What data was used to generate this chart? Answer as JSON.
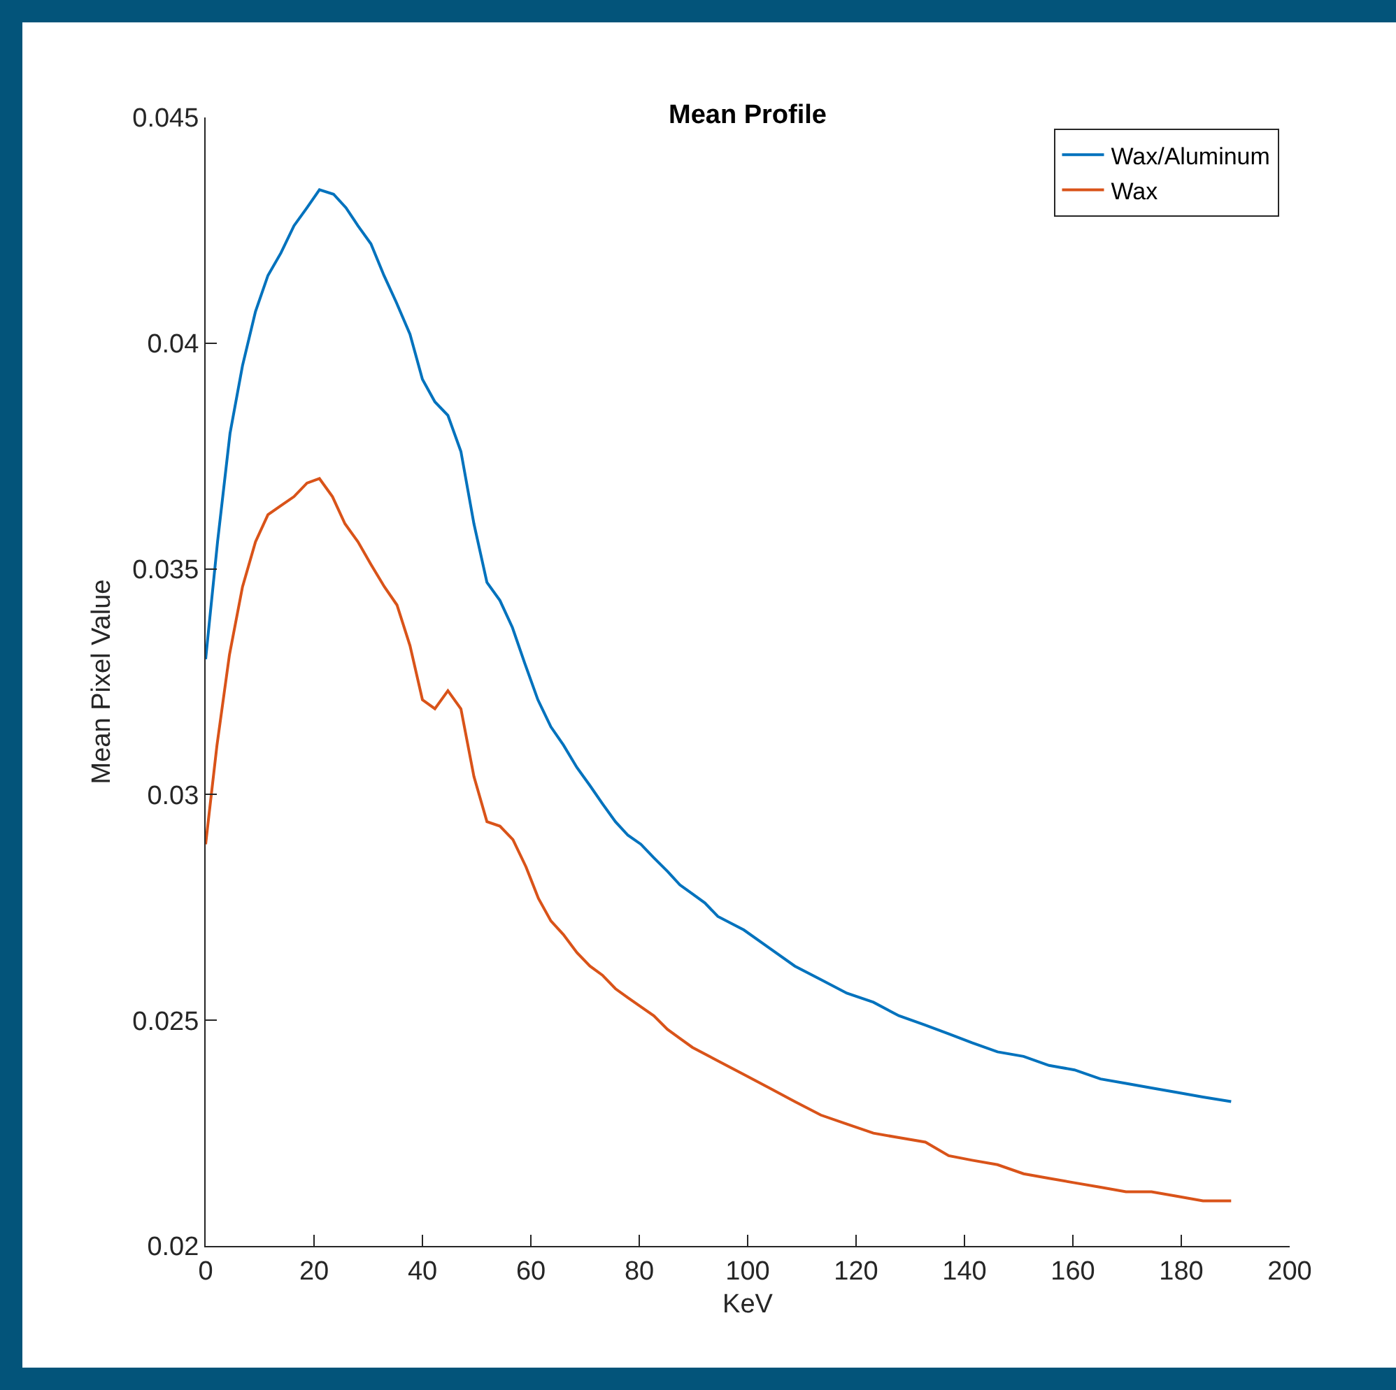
{
  "chart_data": {
    "type": "line",
    "title": "Mean Profile",
    "xlabel": "KeV",
    "ylabel": "Mean Pixel Value",
    "xlim": [
      0,
      200
    ],
    "xticks": [
      0,
      20,
      40,
      60,
      80,
      100,
      120,
      140,
      160,
      180,
      200
    ],
    "ylim": [
      0.02,
      0.045
    ],
    "yticks": [
      0.02,
      0.025,
      0.03,
      0.035,
      0.04,
      0.045
    ],
    "grid": false,
    "legend": "top right",
    "marker": "none",
    "line_style": "solid",
    "series": [
      {
        "name": "Wax/Aluminum",
        "color": "#0072bd",
        "x": [
          0,
          2.2,
          4.5,
          6.8,
          9.2,
          11.5,
          13.9,
          16.3,
          18.7,
          21.0,
          23.6,
          25.9,
          28.1,
          30.5,
          32.9,
          35.2,
          37.7,
          40.0,
          42.3,
          44.7,
          47.1,
          49.5,
          51.9,
          54.3,
          56.6,
          58.9,
          61.3,
          63.7,
          66.0,
          68.5,
          70.9,
          73.2,
          75.6,
          77.9,
          80.3,
          82.7,
          85.2,
          87.5,
          89.8,
          92.1,
          94.5,
          99.3,
          104.0,
          108.7,
          113.5,
          118.3,
          123.2,
          127.9,
          132.6,
          137.1,
          141.4,
          146.1,
          150.9,
          155.6,
          160.3,
          165.1,
          169.8,
          174.5,
          179.3,
          184.0,
          189.2
        ],
        "values": [
          0.033,
          0.0356,
          0.038,
          0.0395,
          0.0407,
          0.0415,
          0.042,
          0.0426,
          0.043,
          0.0434,
          0.0433,
          0.043,
          0.0426,
          0.0422,
          0.0415,
          0.0409,
          0.0402,
          0.0392,
          0.0387,
          0.0384,
          0.0376,
          0.036,
          0.0347,
          0.0343,
          0.0337,
          0.0329,
          0.0321,
          0.0315,
          0.0311,
          0.0306,
          0.0302,
          0.0298,
          0.0294,
          0.0291,
          0.0289,
          0.0286,
          0.0283,
          0.028,
          0.0278,
          0.0276,
          0.0273,
          0.027,
          0.0266,
          0.0262,
          0.0259,
          0.0256,
          0.0254,
          0.0251,
          0.0249,
          0.0247,
          0.0245,
          0.0243,
          0.0242,
          0.024,
          0.0239,
          0.0237,
          0.0236,
          0.0235,
          0.0234,
          0.0233,
          0.0232
        ]
      },
      {
        "name": "Wax",
        "color": "#d95319",
        "x": [
          0,
          2.1,
          4.4,
          6.8,
          9.2,
          11.5,
          13.9,
          16.3,
          18.7,
          21.0,
          23.4,
          25.7,
          28.1,
          30.5,
          33.0,
          35.3,
          37.7,
          40.0,
          42.3,
          44.7,
          47.1,
          49.5,
          51.9,
          54.3,
          56.7,
          59.1,
          61.4,
          63.7,
          66.0,
          68.5,
          70.9,
          73.2,
          75.6,
          77.9,
          80.3,
          82.7,
          85.2,
          87.5,
          89.8,
          94.5,
          99.3,
          104.0,
          108.7,
          113.5,
          118.3,
          123.2,
          127.9,
          132.8,
          137.1,
          141.4,
          146.1,
          150.9,
          155.6,
          160.3,
          165.1,
          169.8,
          174.5,
          179.3,
          184.0,
          189.2
        ],
        "values": [
          0.0289,
          0.0311,
          0.0331,
          0.0346,
          0.0356,
          0.0362,
          0.0364,
          0.0366,
          0.0369,
          0.037,
          0.0366,
          0.036,
          0.0356,
          0.0351,
          0.0346,
          0.0342,
          0.0333,
          0.0321,
          0.0319,
          0.0323,
          0.0319,
          0.0304,
          0.0294,
          0.0293,
          0.029,
          0.0284,
          0.0277,
          0.0272,
          0.0269,
          0.0265,
          0.0262,
          0.026,
          0.0257,
          0.0255,
          0.0253,
          0.0251,
          0.0248,
          0.0246,
          0.0244,
          0.0241,
          0.0238,
          0.0235,
          0.0232,
          0.0229,
          0.0227,
          0.0225,
          0.0224,
          0.0223,
          0.022,
          0.0219,
          0.0218,
          0.0216,
          0.0215,
          0.0214,
          0.0213,
          0.0212,
          0.0212,
          0.0211,
          0.021,
          0.021
        ]
      }
    ]
  }
}
